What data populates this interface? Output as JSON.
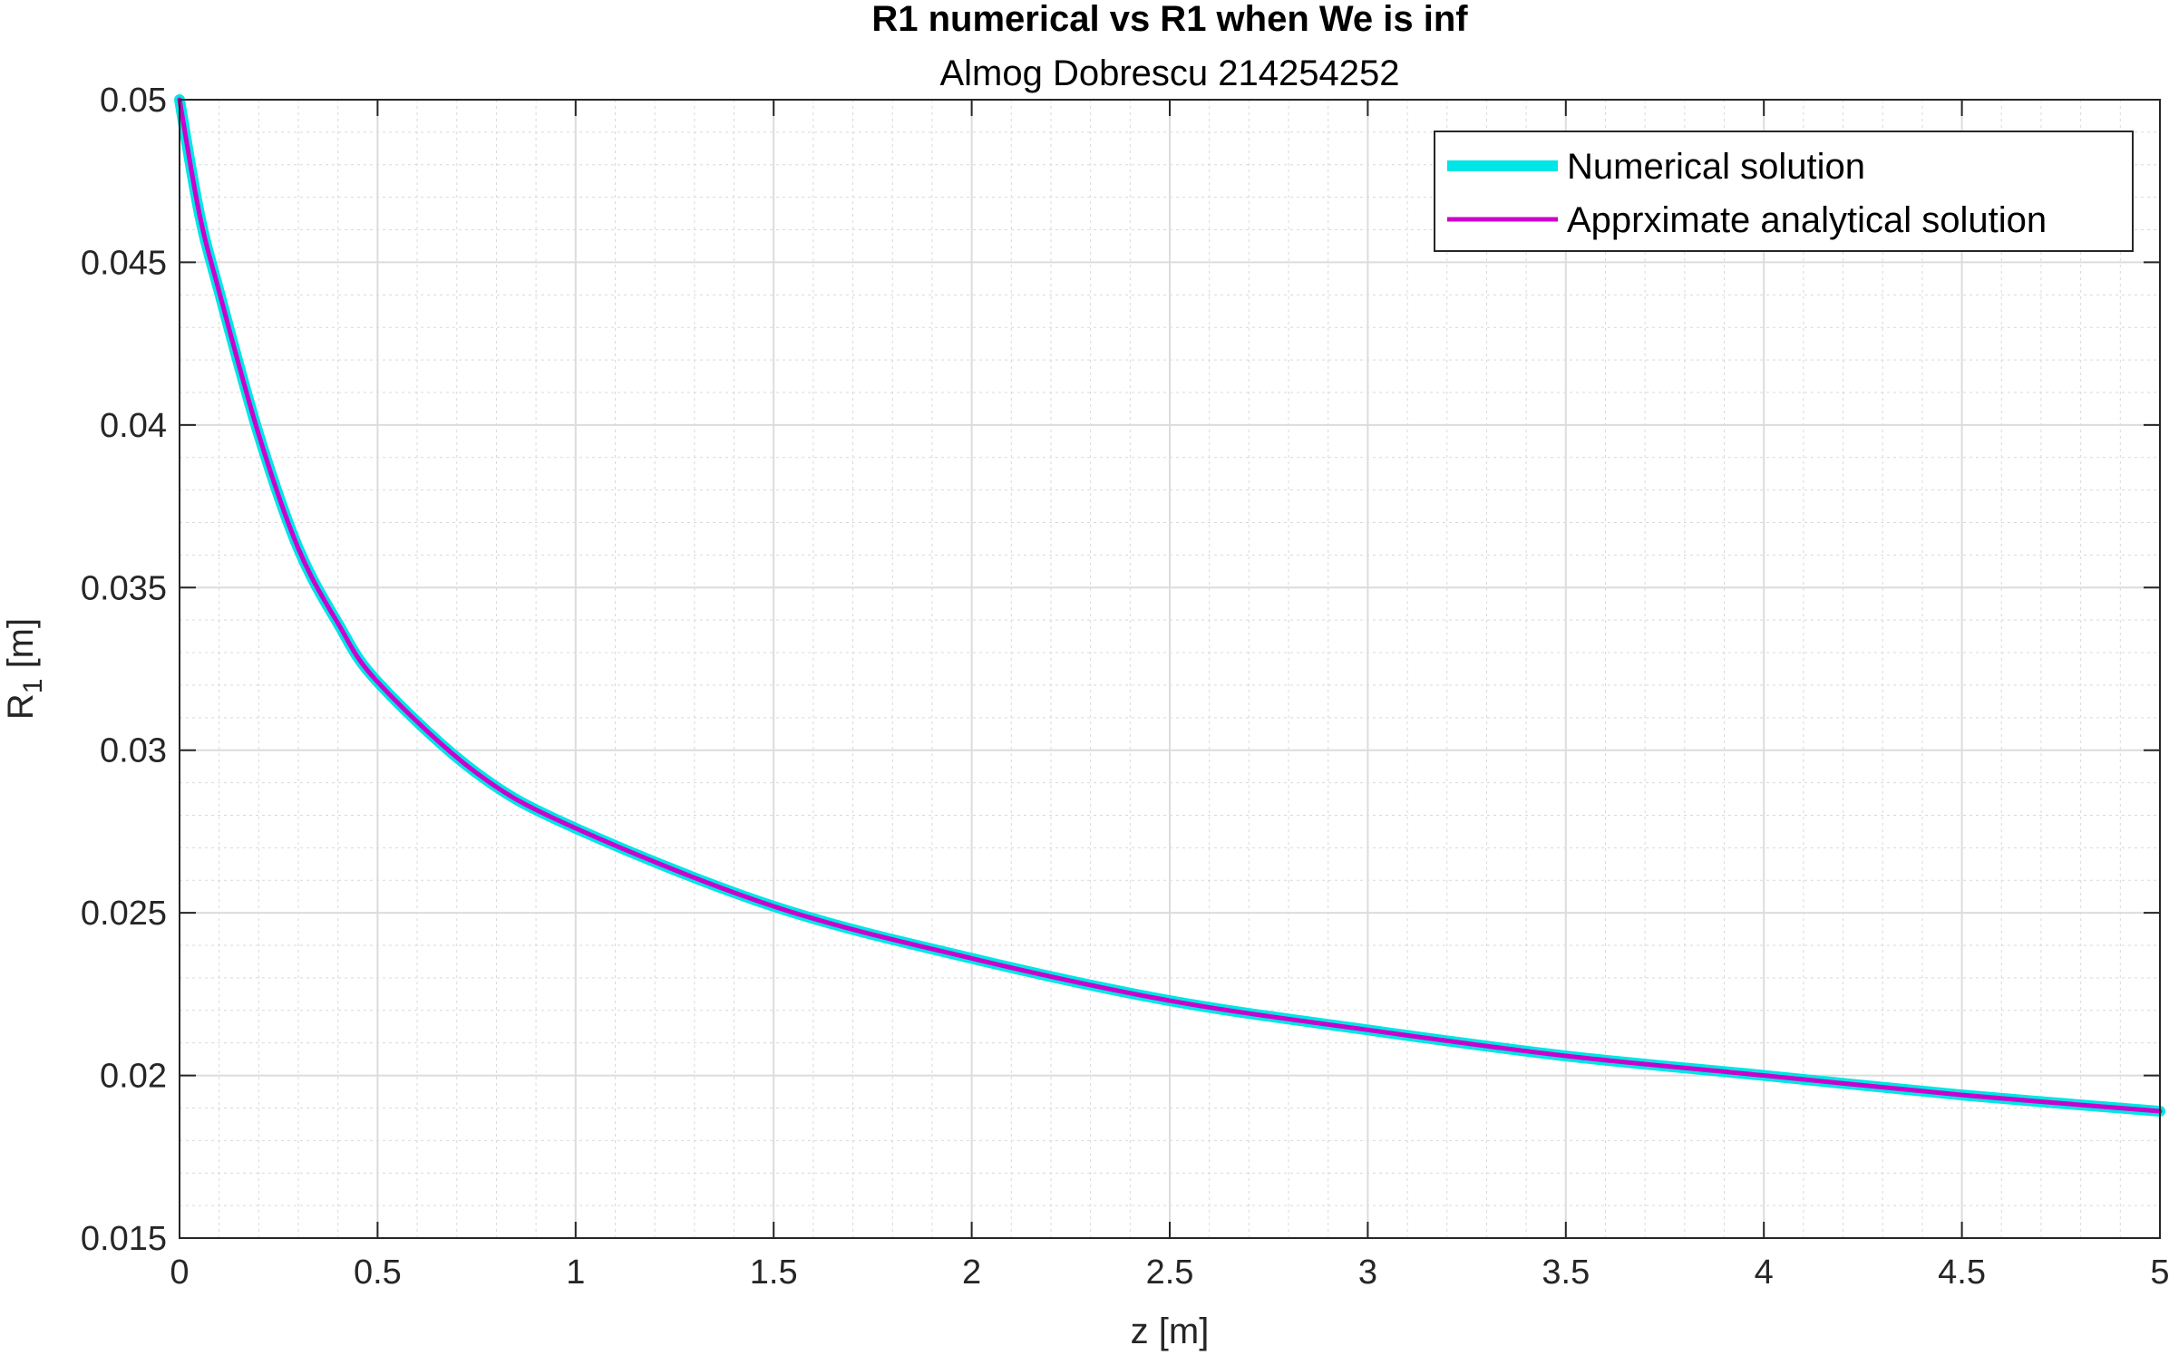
{
  "chart_data": {
    "type": "line",
    "title": "R1 numerical vs R1 when We is inf",
    "subtitle": "Almog Dobrescu 214254252",
    "xlabel": "z [m]",
    "ylabel_main": "R",
    "ylabel_sub": "1",
    "ylabel_unit": " [m]",
    "xlim": [
      0,
      5
    ],
    "ylim": [
      0.015,
      0.05
    ],
    "xticks": [
      0,
      0.5,
      1,
      1.5,
      2,
      2.5,
      3,
      3.5,
      4,
      4.5,
      5
    ],
    "xtick_labels": [
      "0",
      "0.5",
      "1",
      "1.5",
      "2",
      "2.5",
      "3",
      "3.5",
      "4",
      "4.5",
      "5"
    ],
    "yticks": [
      0.015,
      0.02,
      0.025,
      0.03,
      0.035,
      0.04,
      0.045,
      0.05
    ],
    "ytick_labels": [
      "0.015",
      "0.02",
      "0.025",
      "0.03",
      "0.035",
      "0.04",
      "0.045",
      "0.05"
    ],
    "grid": true,
    "minor_grid": true,
    "legend_position": "top-right",
    "series": [
      {
        "name": "Numerical solution",
        "color": "#00e5e5",
        "x": [
          0,
          0.05,
          0.1,
          0.2,
          0.3,
          0.4,
          0.5,
          0.75,
          1,
          1.5,
          2,
          2.5,
          3,
          3.5,
          4,
          4.5,
          5
        ],
        "y": [
          0.05,
          0.0465,
          0.0441,
          0.0397,
          0.0362,
          0.0339,
          0.0321,
          0.0293,
          0.0276,
          0.0252,
          0.0236,
          0.0223,
          0.0214,
          0.0206,
          0.02,
          0.0194,
          0.0189
        ]
      },
      {
        "name": "Apprximate analytical solution",
        "color": "#cc00cc",
        "x": [
          0,
          0.05,
          0.1,
          0.2,
          0.3,
          0.4,
          0.5,
          0.75,
          1,
          1.5,
          2,
          2.5,
          3,
          3.5,
          4,
          4.5,
          5
        ],
        "y": [
          0.05,
          0.0465,
          0.0441,
          0.0397,
          0.0362,
          0.0339,
          0.0321,
          0.0293,
          0.0276,
          0.0252,
          0.0236,
          0.0223,
          0.0214,
          0.0206,
          0.02,
          0.0194,
          0.0189
        ]
      }
    ]
  }
}
